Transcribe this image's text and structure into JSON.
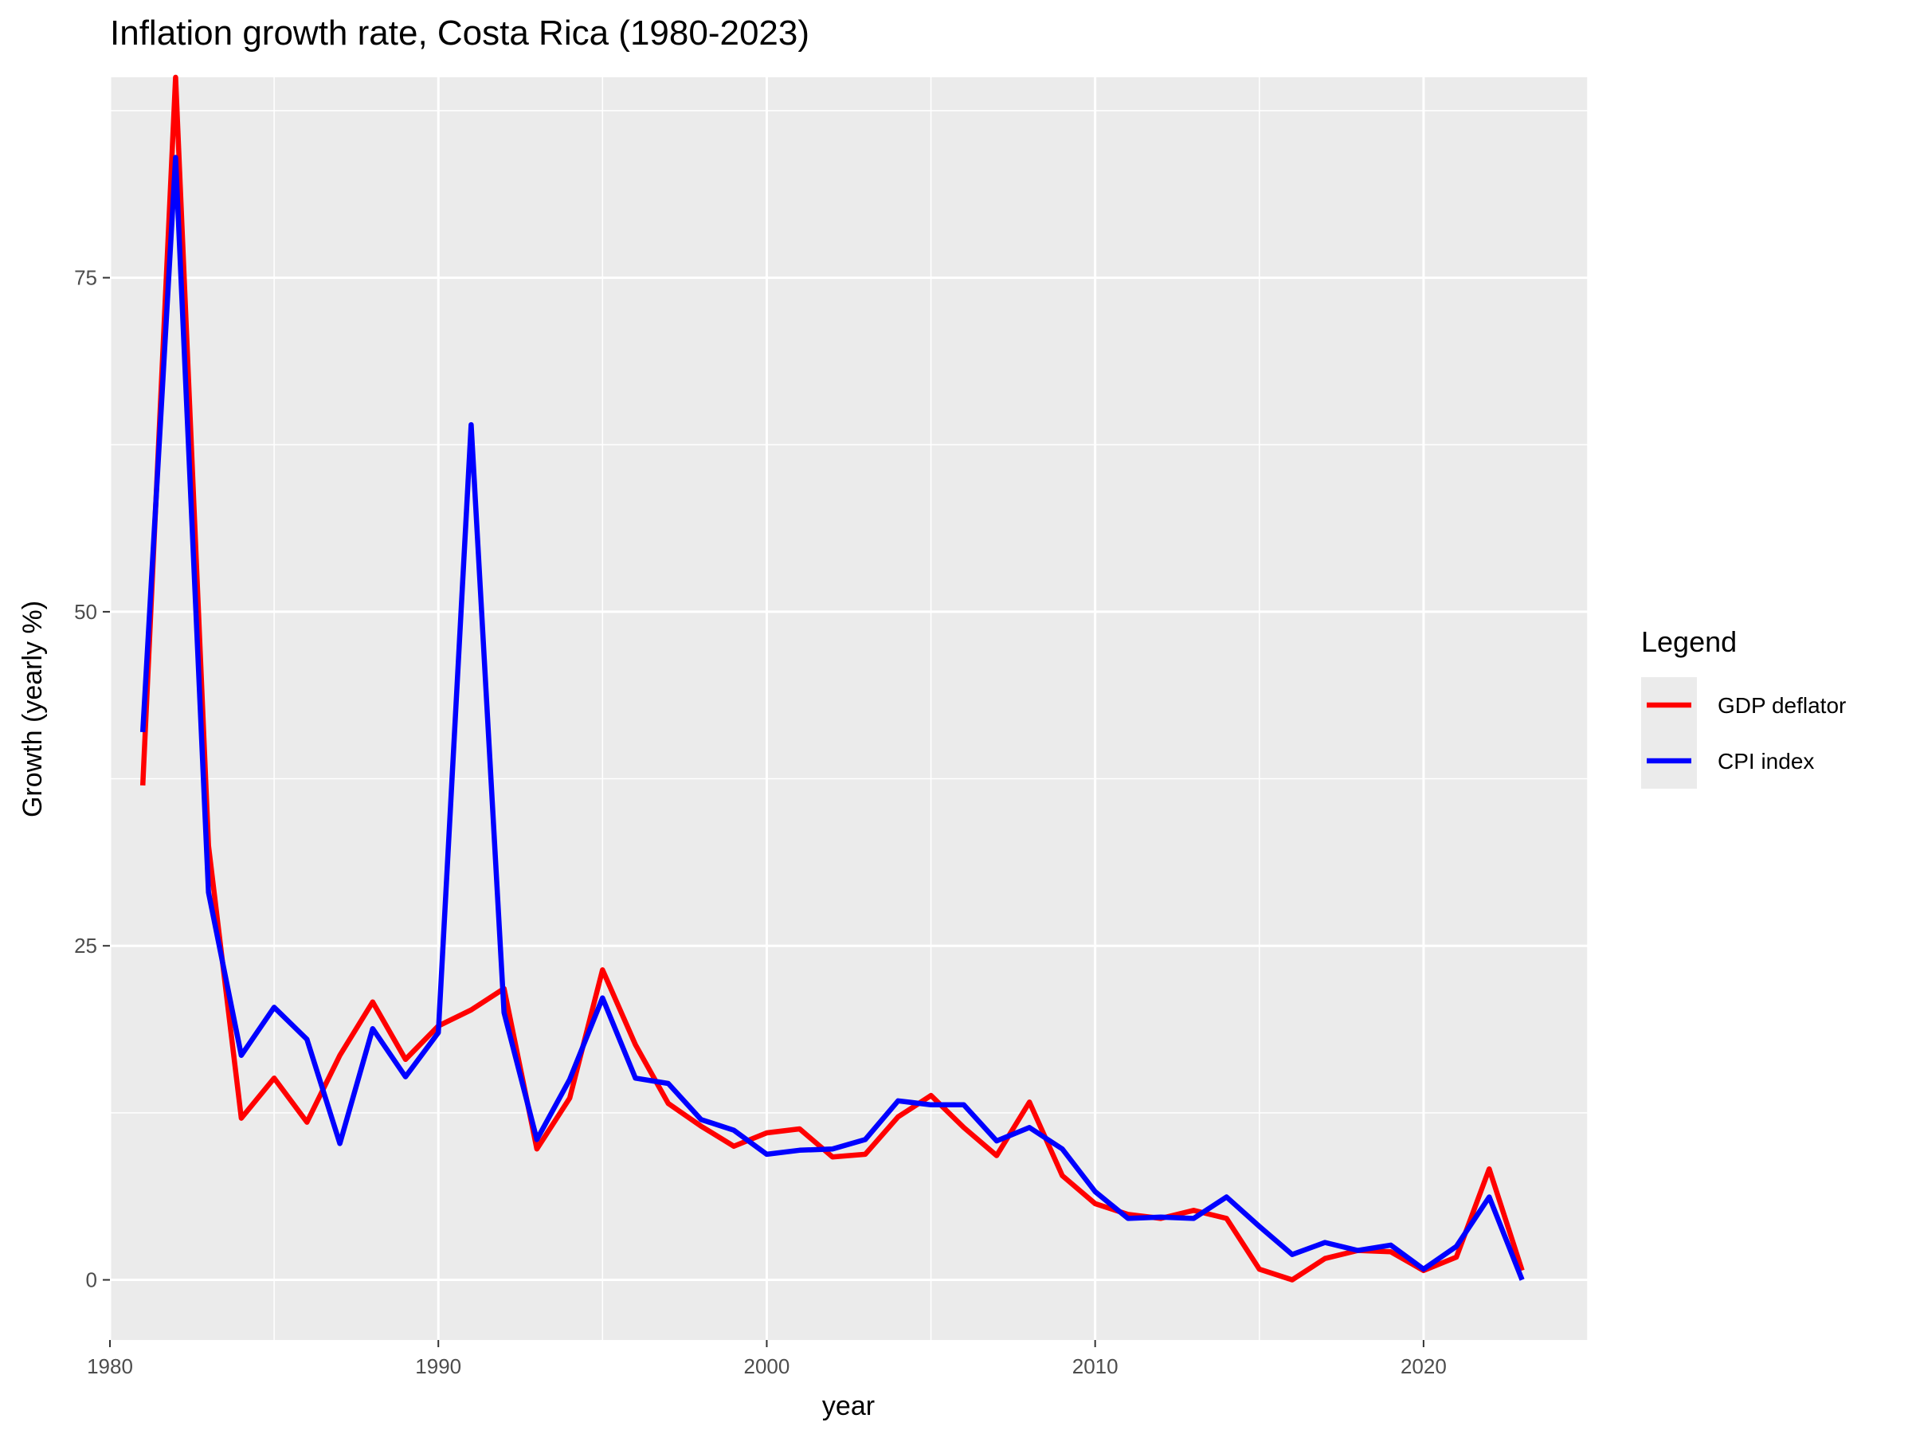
{
  "chart_data": {
    "type": "line",
    "title": "Inflation growth rate, Costa Rica (1980-2023)",
    "xlabel": "year",
    "ylabel": "Growth (yearly %)",
    "xlim": [
      1980,
      2025
    ],
    "ylim": [
      -4.5,
      90
    ],
    "x_ticks": [
      1980,
      1990,
      2000,
      2010,
      2020
    ],
    "y_ticks": [
      0,
      25,
      50,
      75
    ],
    "grid": true,
    "legend": {
      "title": "Legend",
      "position": "right"
    },
    "x": [
      1981,
      1982,
      1983,
      1984,
      1985,
      1986,
      1987,
      1988,
      1989,
      1990,
      1991,
      1992,
      1993,
      1994,
      1995,
      1996,
      1997,
      1998,
      1999,
      2000,
      2001,
      2002,
      2003,
      2004,
      2005,
      2006,
      2007,
      2008,
      2009,
      2010,
      2011,
      2012,
      2013,
      2014,
      2015,
      2016,
      2017,
      2018,
      2019,
      2020,
      2021,
      2022,
      2023
    ],
    "series": [
      {
        "name": "GDP deflator",
        "color": "#ff0000",
        "values": [
          37.0,
          90.0,
          32.5,
          12.1,
          15.1,
          11.8,
          16.8,
          20.8,
          16.5,
          19.0,
          20.2,
          21.8,
          9.8,
          13.6,
          23.2,
          17.6,
          13.2,
          11.5,
          10.0,
          11.0,
          11.3,
          9.2,
          9.4,
          12.2,
          13.8,
          11.4,
          9.3,
          13.3,
          7.8,
          5.7,
          4.9,
          4.6,
          5.2,
          4.6,
          0.8,
          0.0,
          1.6,
          2.2,
          2.1,
          0.7,
          1.7,
          8.3,
          0.7
        ]
      },
      {
        "name": "CPI index",
        "color": "#0000ff",
        "values": [
          41.0,
          84.0,
          29.0,
          16.8,
          20.4,
          18.0,
          10.2,
          18.8,
          15.2,
          18.5,
          64.0,
          20.0,
          10.5,
          15.0,
          21.1,
          15.1,
          14.7,
          12.0,
          11.2,
          9.4,
          9.7,
          9.8,
          10.5,
          13.4,
          13.1,
          13.1,
          10.4,
          11.4,
          9.8,
          6.6,
          4.6,
          4.7,
          4.6,
          6.2,
          4.0,
          1.9,
          2.8,
          2.2,
          2.6,
          0.8,
          2.5,
          6.2,
          0.0
        ]
      }
    ]
  }
}
